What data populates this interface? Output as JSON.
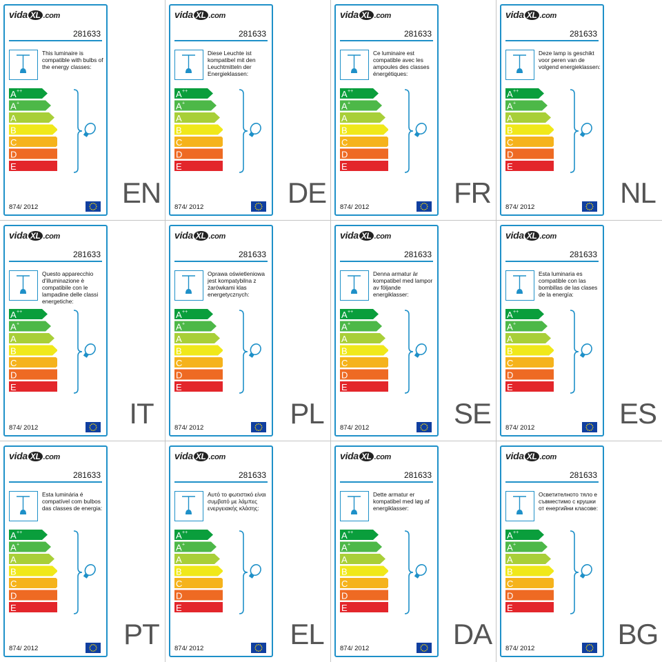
{
  "model": "281633",
  "regulation": "874/ 2012",
  "logo": {
    "brand": "vida",
    "mark": "XL",
    "domain": ".com"
  },
  "energy_classes": [
    {
      "main": "A",
      "sup": "++",
      "color": "#0a9e3c"
    },
    {
      "main": "A",
      "sup": "+",
      "color": "#4db848"
    },
    {
      "main": "A",
      "sup": "",
      "color": "#a8cf38"
    },
    {
      "main": "B",
      "sup": "",
      "color": "#f0e81a"
    },
    {
      "main": "C",
      "sup": "",
      "color": "#f5b31c"
    },
    {
      "main": "D",
      "sup": "",
      "color": "#ee6a23"
    },
    {
      "main": "E",
      "sup": "",
      "color": "#e3262b"
    }
  ],
  "colors": {
    "border": "#1e90c8",
    "eu_flag": "#103fa0",
    "eu_stars": "#f5d70a"
  },
  "panels": [
    {
      "code": "EN",
      "text": "This luminaire is compatible with bulbs of the energy classes:"
    },
    {
      "code": "DE",
      "text": "Diese Leuchte ist kompatibel mit den Leuchtmitteln der Energieklassen:"
    },
    {
      "code": "FR",
      "text": "Ce luminaire est compatible avec les ampoules des classes énergétiques:"
    },
    {
      "code": "NL",
      "text": "Deze lamp is geschikt voor peren van de volgend energieklassen:"
    },
    {
      "code": "IT",
      "text": "Questo apparecchio d'illuminazione è compatibile con le lampadine delle classi energetiche:"
    },
    {
      "code": "PL",
      "text": "Oprawa oświetleniowa jest kompatybilna z żarówkami klas energetycznych:"
    },
    {
      "code": "SE",
      "text": "Denna armatur är kompatibel med lampor av följande energiklasser:"
    },
    {
      "code": "ES",
      "text": "Esta luminaria es compatible con las bombillas de las clases de la energía:"
    },
    {
      "code": "PT",
      "text": "Esta luminária é compatível com bulbos das classes de energia:"
    },
    {
      "code": "EL",
      "text": "Αυτό το φωτιστικό είναι συμβατό με λάμπες ενεργειακής κλάσης:"
    },
    {
      "code": "DA",
      "text": "Dette armatur er kompatibel med løg af energiklasser:"
    },
    {
      "code": "BG",
      "text": "Осветителното тяло е съвместимо с крушки от енергийни класове:"
    }
  ]
}
